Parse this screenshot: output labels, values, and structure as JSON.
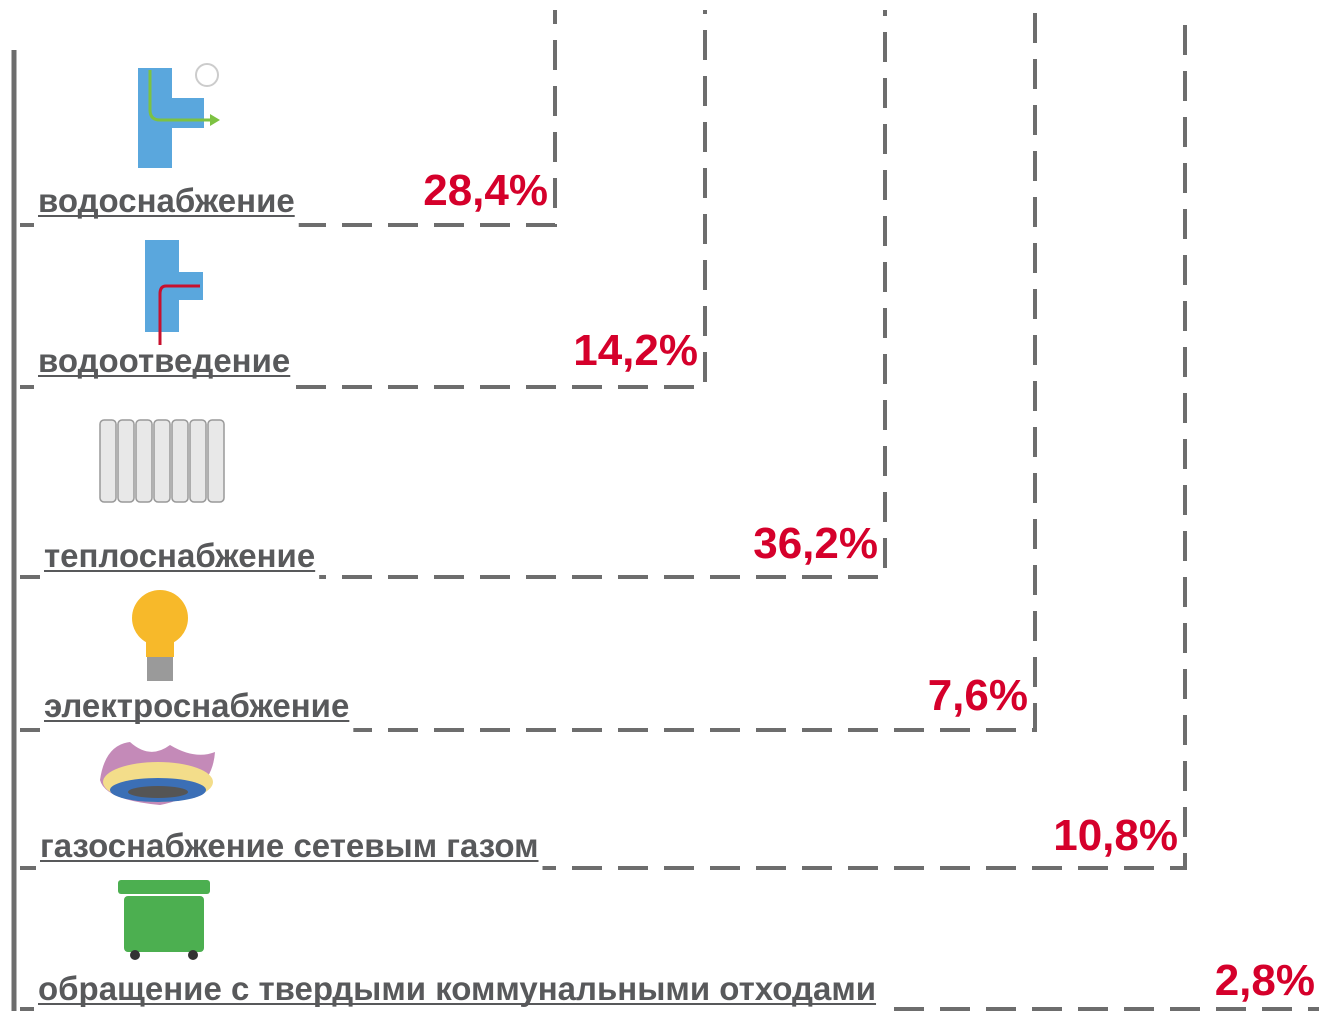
{
  "items": [
    {
      "label": "водоснабжение",
      "value": "28,4%"
    },
    {
      "label": "водоотведение",
      "value": "14,2%"
    },
    {
      "label": "теплоснабжение",
      "value": "36,2%"
    },
    {
      "label": "электроснабжение",
      "value": "7,6%"
    },
    {
      "label": "газоснабжение сетевым газом",
      "value": "10,8%"
    },
    {
      "label": "обращение с твердыми коммунальными отходами",
      "value": "2,8%"
    }
  ]
}
